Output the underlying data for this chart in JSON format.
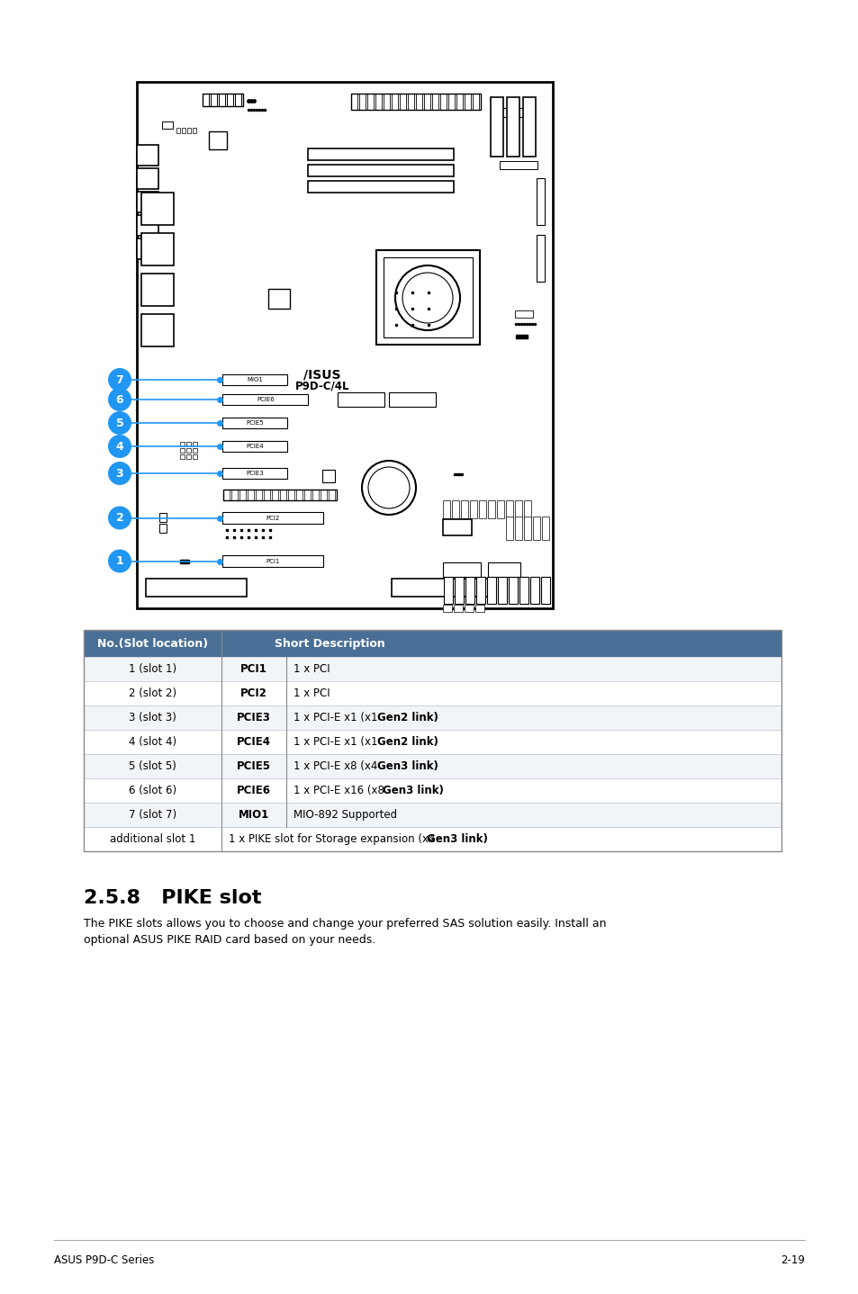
{
  "title": "2.5.8   PIKE slot",
  "body_text_line1": "The PIKE slots allows you to choose and change your preferred SAS solution easily. Install an",
  "body_text_line2": "optional ASUS PIKE RAID card based on your needs.",
  "table_header": [
    "No.(Slot location)",
    "Short Description"
  ],
  "table_header_bg": "#4a6f96",
  "table_header_color": "#ffffff",
  "table_rows": [
    [
      "1 (slot 1)",
      "PCI1",
      "1 x PCI",
      ""
    ],
    [
      "2 (slot 2)",
      "PCI2",
      "1 x PCI",
      ""
    ],
    [
      "3 (slot 3)",
      "PCIE3",
      "1 x PCI-E x1 (x1 ",
      "Gen2 link)"
    ],
    [
      "4 (slot 4)",
      "PCIE4",
      "1 x PCI-E x1 (x1 ",
      "Gen2 link)"
    ],
    [
      "5 (slot 5)",
      "PCIE5",
      "1 x PCI-E x8 (x4 ",
      "Gen3 link)"
    ],
    [
      "6 (slot 6)",
      "PCIE6",
      "1 x PCI-E x16 (x8 ",
      "Gen3 link)"
    ],
    [
      "7 (slot 7)",
      "MIO1",
      "MIO-892 Supported",
      ""
    ],
    [
      "additional slot 1",
      "",
      "1 x PIKE slot for Storage expansion (x4 ",
      "Gen3 link)"
    ]
  ],
  "footer_left": "ASUS P9D-C Series",
  "footer_right": "2-19",
  "slot_color": "#2196F3",
  "line_color": "#2196F3"
}
